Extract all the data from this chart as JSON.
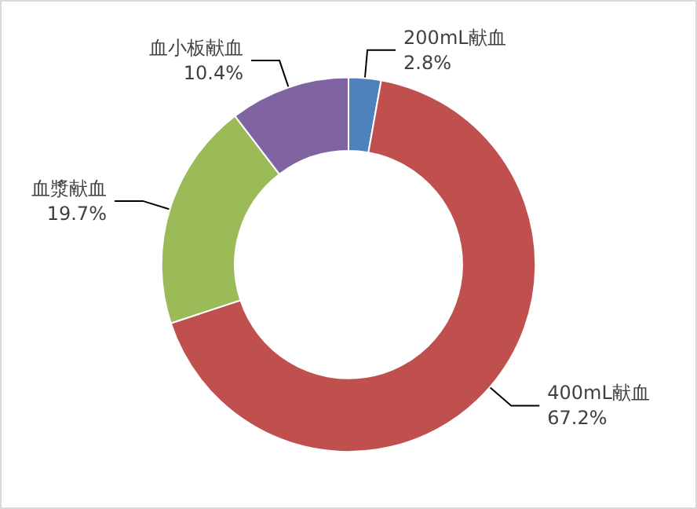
{
  "chart_data": {
    "type": "donut",
    "categories": [
      "200mL献血",
      "400mL献血",
      "血漿献血",
      "血小板献血"
    ],
    "values": [
      2.8,
      67.2,
      19.7,
      10.4
    ],
    "colors": [
      "#4f81bd",
      "#c0504d",
      "#9bbb59",
      "#8064a2"
    ],
    "value_labels": [
      "2.8%",
      "67.2%",
      "19.7%",
      "10.4%"
    ],
    "legend": false
  }
}
